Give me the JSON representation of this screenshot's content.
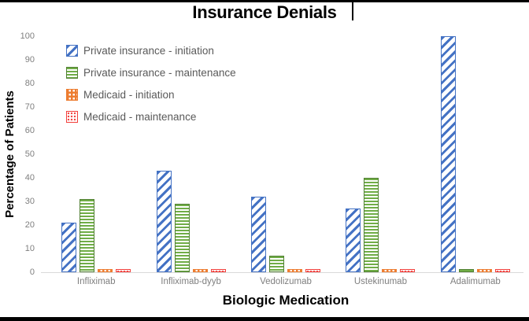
{
  "title": "Insurance Denials",
  "colors": {
    "background": "#FFFFFF",
    "frame": "#000000",
    "title_text": "#000000",
    "tick_text": "#7F7F7F",
    "legend_text": "#595959",
    "axis_line": "#D9D9D9",
    "series_blue": "#4472C4",
    "series_green": "#70AD47",
    "series_green_border": "#538135",
    "series_orange": "#ED7D31",
    "series_red": "#F2403C"
  },
  "chart_data": {
    "type": "bar",
    "title": "Insurance Denials",
    "xlabel": "Biologic Medication",
    "ylabel": "Percentage of Patients",
    "ylim": [
      0,
      100
    ],
    "y_ticks": [
      0,
      10,
      20,
      30,
      40,
      50,
      60,
      70,
      80,
      90,
      100
    ],
    "grid": false,
    "legend_position": "upper-left-inside",
    "categories": [
      "Infliximab",
      "Infliximab-dyyb",
      "Vedolizumab",
      "Ustekinumab",
      "Adalimumab"
    ],
    "series": [
      {
        "name": "Private insurance - initiation",
        "pattern": "diagonal-stripes",
        "color": "#4472C4",
        "values": [
          21,
          43,
          32,
          27,
          100
        ]
      },
      {
        "name": "Private insurance - maintenance",
        "pattern": "horizontal-stripes",
        "color": "#70AD47",
        "border_color": "#538135",
        "values": [
          31,
          29,
          7,
          40,
          1.5
        ]
      },
      {
        "name": "Medicaid - initiation",
        "pattern": "checker",
        "color": "#ED7D31",
        "values": [
          1,
          1,
          1,
          1,
          1
        ]
      },
      {
        "name": "Medicaid - maintenance",
        "pattern": "dots",
        "color": "#F2403C",
        "values": [
          1,
          1,
          1,
          1,
          1
        ]
      }
    ]
  }
}
